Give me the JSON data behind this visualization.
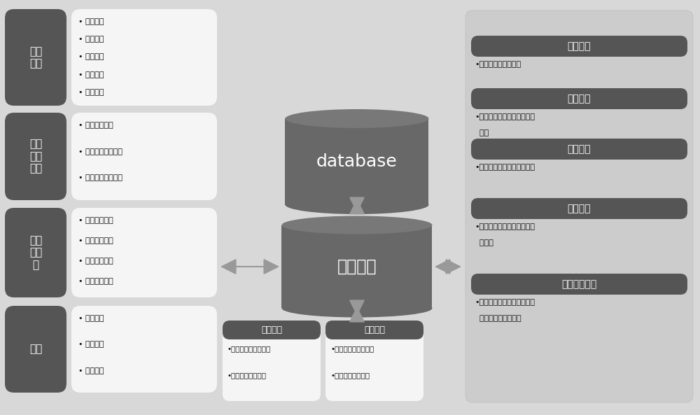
{
  "bg_color": "#d8d8d8",
  "dark_box_color": "#555555",
  "light_box_color": "#f5f5f5",
  "white_text": "#ffffff",
  "dark_text": "#111111",
  "left_modules": [
    {
      "title": "工区\n管理",
      "items": [
        "工区创建",
        "工区修改",
        "工区删除",
        "工区备份",
        "工区收量"
      ]
    },
    {
      "title": "工区\n数据\n管理",
      "items": [
        "井位数据管理",
        "地质模型数据管理",
        "预设靶点数据管理"
      ]
    },
    {
      "title": "井数\n据管\n理",
      "items": [
        "井斜数据管理",
        "录井数据管理",
        "测井数据管理",
        "钒井进度管理"
      ]
    },
    {
      "title": "用户",
      "items": [
        "增加用户",
        "删除用户",
        "修改用户"
      ]
    }
  ],
  "right_modules": [
    {
      "title": "多井对比",
      "items": [
        "•建立初始模型控制点"
      ]
    },
    {
      "title": "井震对比",
      "items": [
        "•在时间域修改和调整模型控\n  制点"
      ]
    },
    {
      "title": "水平投影",
      "items": [
        "•建立初始模型后或调整模型"
      ]
    },
    {
      "title": "地质导向",
      "items": [
        "•根据轨迹上关键点调整模型\n  控制点"
      ]
    },
    {
      "title": "待钒轨迹设计",
      "items": [
        "•利用手动或自动方式设计正\n  钒钒头后的钒井轨迹"
      ]
    }
  ],
  "bottom_modules": [
    {
      "title": "三维显示",
      "items": [
        "•三维轨迹、曲线显示",
        "•三维地质模型显示"
      ]
    },
    {
      "title": "二维显示",
      "items": [
        "•二维曲线、轨迹显示",
        "•二维地质模型显示"
      ]
    }
  ],
  "center_top_text": "database",
  "center_bottom_text": "系统文件"
}
